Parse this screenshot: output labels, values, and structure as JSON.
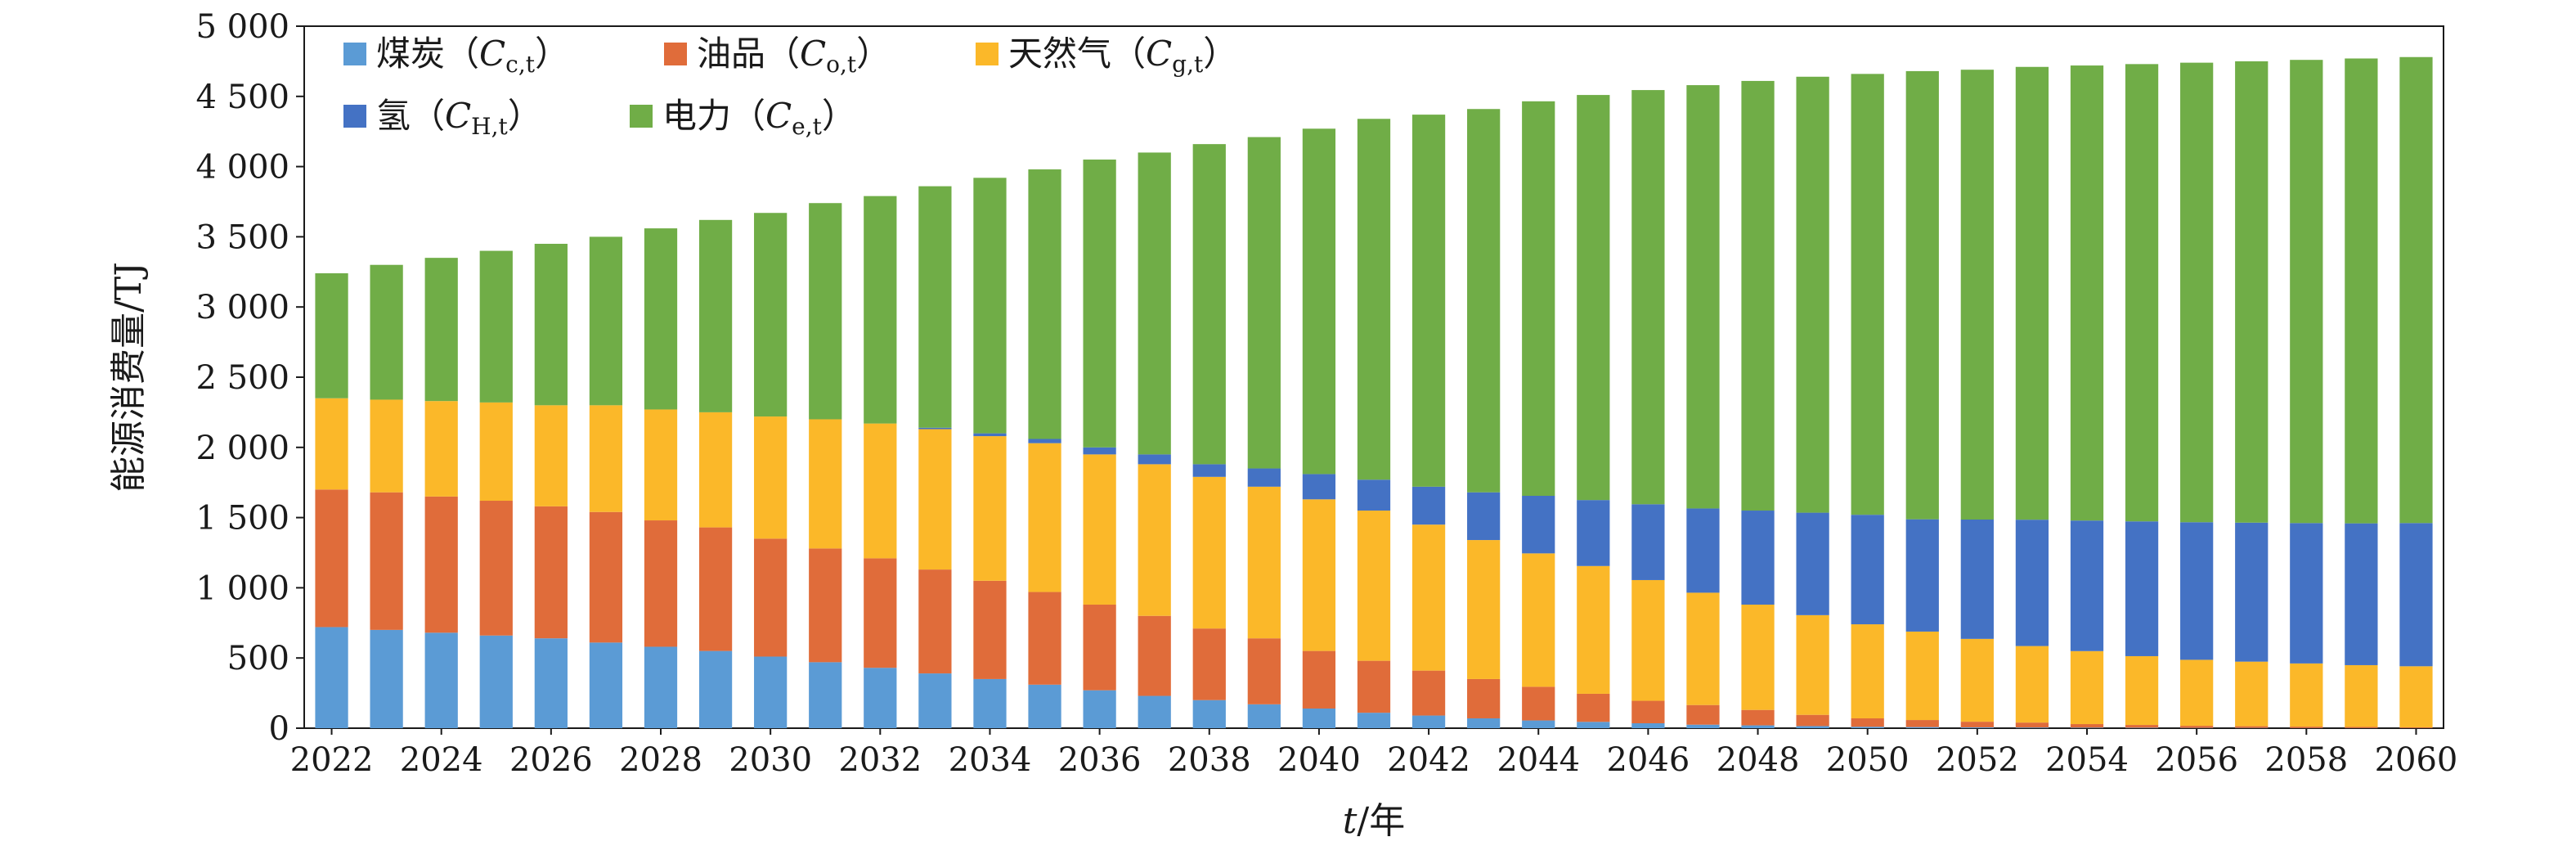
{
  "chart_data": {
    "type": "bar",
    "stacked": true,
    "xlabel_italic": "t",
    "xlabel_suffix": "/年",
    "ylabel": "能源消费量/TJ",
    "ylim": [
      0,
      5000
    ],
    "yticks": [
      0,
      500,
      1000,
      1500,
      2000,
      2500,
      3000,
      3500,
      4000,
      4500,
      5000
    ],
    "ytick_labels": [
      "0",
      "500",
      "1 000",
      "1 500",
      "2 000",
      "2 500",
      "3 000",
      "3 500",
      "4 000",
      "4 500",
      "5 000"
    ],
    "grid": false,
    "legend_position": "top-left",
    "categories": [
      2022,
      2023,
      2024,
      2025,
      2026,
      2027,
      2028,
      2029,
      2030,
      2031,
      2032,
      2033,
      2034,
      2035,
      2036,
      2037,
      2038,
      2039,
      2040,
      2041,
      2042,
      2043,
      2044,
      2045,
      2046,
      2047,
      2048,
      2049,
      2050,
      2051,
      2052,
      2053,
      2054,
      2055,
      2056,
      2057,
      2058,
      2059,
      2060
    ],
    "xtick_labels": [
      "2022",
      "2024",
      "2026",
      "2028",
      "2030",
      "2032",
      "2034",
      "2036",
      "2038",
      "2040",
      "2042",
      "2044",
      "2046",
      "2048",
      "2050",
      "2052",
      "2054",
      "2056",
      "2058",
      "2060"
    ],
    "series": [
      {
        "name": "煤炭",
        "symbol_main": "C",
        "symbol_sub": "c,t",
        "color": "#5b9bd5",
        "values": [
          720,
          700,
          680,
          660,
          640,
          610,
          580,
          550,
          510,
          470,
          430,
          390,
          350,
          310,
          270,
          230,
          200,
          170,
          140,
          110,
          90,
          70,
          55,
          45,
          35,
          25,
          20,
          15,
          10,
          8,
          6,
          5,
          4,
          3,
          2,
          2,
          1,
          1,
          1
        ]
      },
      {
        "name": "油品",
        "symbol_main": "C",
        "symbol_sub": "o,t",
        "color": "#e06c3a",
        "values": [
          980,
          980,
          970,
          960,
          940,
          930,
          900,
          880,
          840,
          810,
          780,
          740,
          700,
          660,
          610,
          570,
          510,
          470,
          410,
          370,
          320,
          280,
          240,
          200,
          160,
          140,
          110,
          80,
          60,
          50,
          40,
          35,
          25,
          20,
          15,
          12,
          10,
          8,
          5
        ]
      },
      {
        "name": "天然气",
        "symbol_main": "C",
        "symbol_sub": "g,t",
        "color": "#fbb829",
        "values": [
          650,
          660,
          680,
          700,
          720,
          760,
          790,
          820,
          870,
          920,
          960,
          1000,
          1030,
          1060,
          1070,
          1080,
          1080,
          1080,
          1080,
          1070,
          1040,
          990,
          950,
          910,
          860,
          800,
          750,
          710,
          670,
          630,
          590,
          545,
          520,
          490,
          470,
          460,
          450,
          440,
          435
        ]
      },
      {
        "name": "氢",
        "symbol_main": "C",
        "symbol_sub": "H,t",
        "color": "#4472c4",
        "values": [
          0,
          0,
          0,
          0,
          0,
          0,
          0,
          0,
          0,
          0,
          0,
          10,
          20,
          30,
          50,
          70,
          90,
          130,
          180,
          220,
          270,
          340,
          410,
          470,
          540,
          600,
          670,
          730,
          780,
          800,
          850,
          900,
          930,
          960,
          980,
          990,
          1000,
          1010,
          1020
        ]
      },
      {
        "name": "电力",
        "symbol_main": "C",
        "symbol_sub": "e,t",
        "color": "#70ad47",
        "values": [
          890,
          960,
          1020,
          1080,
          1150,
          1200,
          1290,
          1370,
          1450,
          1540,
          1620,
          1720,
          1820,
          1920,
          2050,
          2150,
          2280,
          2360,
          2460,
          2570,
          2650,
          2730,
          2810,
          2885,
          2950,
          3015,
          3060,
          3105,
          3140,
          3192,
          3204,
          3225,
          3241,
          3257,
          3273,
          3286,
          3299,
          3311,
          3319
        ]
      }
    ]
  }
}
